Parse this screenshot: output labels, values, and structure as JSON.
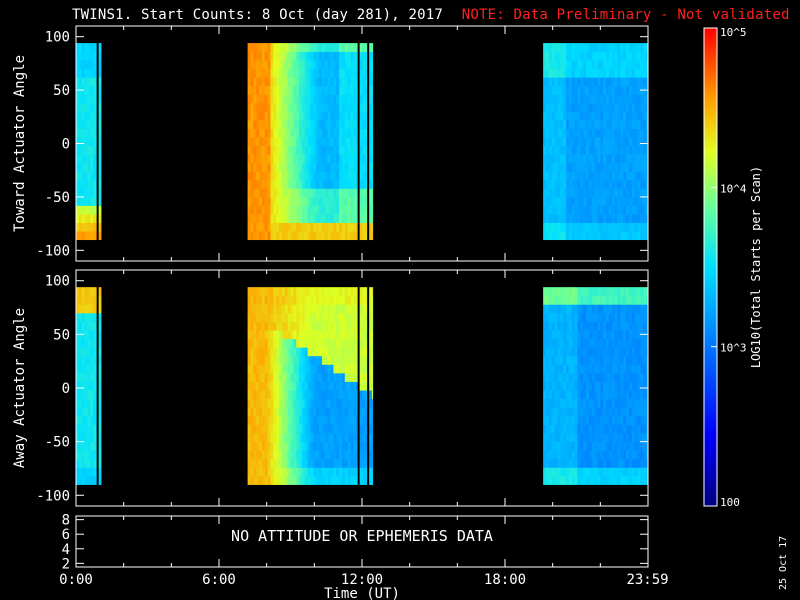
{
  "title": {
    "main": "TWINS1. Start Counts:  8 Oct (day 281), 2017",
    "note": "NOTE: Data Preliminary - Not validated"
  },
  "date_stamp": "25 Oct 17",
  "no_data_text": "NO ATTITUDE OR EPHEMERIS DATA",
  "colorbar": {
    "label": "LOG10(Total Starts per Scan)",
    "ticks": [
      "10^5",
      "10^4",
      "10^3",
      "100"
    ],
    "range": [
      100,
      100000
    ],
    "scale": "log"
  },
  "chart_data": [
    {
      "type": "heatmap",
      "panel": "top",
      "ylabel": "Toward Actuator Angle",
      "ylim": [
        -110,
        110
      ],
      "yticks": [
        "100",
        "50",
        "0",
        "-50",
        "-100"
      ],
      "xlim": [
        0,
        24
      ],
      "xticks": [
        "0:00",
        "6:00",
        "12:00",
        "18:00",
        "23:59"
      ],
      "data_blocks": [
        {
          "start": 0.0,
          "end": 0.85
        },
        {
          "start": 0.95,
          "end": 1.05
        },
        {
          "start": 7.2,
          "end": 11.8
        },
        {
          "start": 11.9,
          "end": 12.2
        },
        {
          "start": 12.3,
          "end": 12.45
        },
        {
          "start": 19.6,
          "end": 23.98
        }
      ]
    },
    {
      "type": "heatmap",
      "panel": "middle",
      "ylabel": "Away Actuator Angle",
      "ylim": [
        -110,
        110
      ],
      "yticks": [
        "100",
        "50",
        "0",
        "-50",
        "-100"
      ],
      "xlim": [
        0,
        24
      ],
      "xticks": [
        "0:00",
        "6:00",
        "12:00",
        "18:00",
        "23:59"
      ],
      "data_blocks": [
        {
          "start": 0.0,
          "end": 0.85
        },
        {
          "start": 0.95,
          "end": 1.05
        },
        {
          "start": 7.2,
          "end": 11.8
        },
        {
          "start": 11.9,
          "end": 12.2
        },
        {
          "start": 12.3,
          "end": 12.45
        },
        {
          "start": 19.6,
          "end": 23.98
        }
      ]
    },
    {
      "type": "line",
      "panel": "bottom",
      "ylim": [
        1.5,
        8.5
      ],
      "yticks": [
        "8",
        "6",
        "4",
        "2"
      ],
      "xlim": [
        0,
        24
      ],
      "xticks": [
        "0:00",
        "6:00",
        "12:00",
        "18:00",
        "23:59"
      ],
      "xlabel": "Time (UT)"
    }
  ]
}
